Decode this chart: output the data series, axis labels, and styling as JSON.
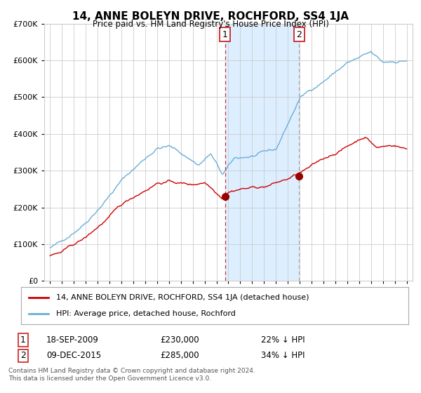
{
  "title": "14, ANNE BOLEYN DRIVE, ROCHFORD, SS4 1JA",
  "subtitle": "Price paid vs. HM Land Registry's House Price Index (HPI)",
  "legend_line1": "14, ANNE BOLEYN DRIVE, ROCHFORD, SS4 1JA (detached house)",
  "legend_line2": "HPI: Average price, detached house, Rochford",
  "annotation1_label": "1",
  "annotation1_date": "18-SEP-2009",
  "annotation1_price": "£230,000",
  "annotation1_hpi": "22% ↓ HPI",
  "annotation1_year": 2009.72,
  "annotation1_value": 230000,
  "annotation2_label": "2",
  "annotation2_date": "09-DEC-2015",
  "annotation2_price": "£285,000",
  "annotation2_hpi": "34% ↓ HPI",
  "annotation2_year": 2015.94,
  "annotation2_value": 285000,
  "hpi_color": "#6aaed6",
  "price_color": "#cc0000",
  "shade_color": "#ddeeff",
  "dashed_line_color": "#cc3333",
  "grid_color": "#cccccc",
  "bg_color": "#ffffff",
  "ylim": [
    0,
    700000
  ],
  "xlim_start": 1994.5,
  "xlim_end": 2025.5,
  "footnote1": "Contains HM Land Registry data © Crown copyright and database right 2024.",
  "footnote2": "This data is licensed under the Open Government Licence v3.0."
}
